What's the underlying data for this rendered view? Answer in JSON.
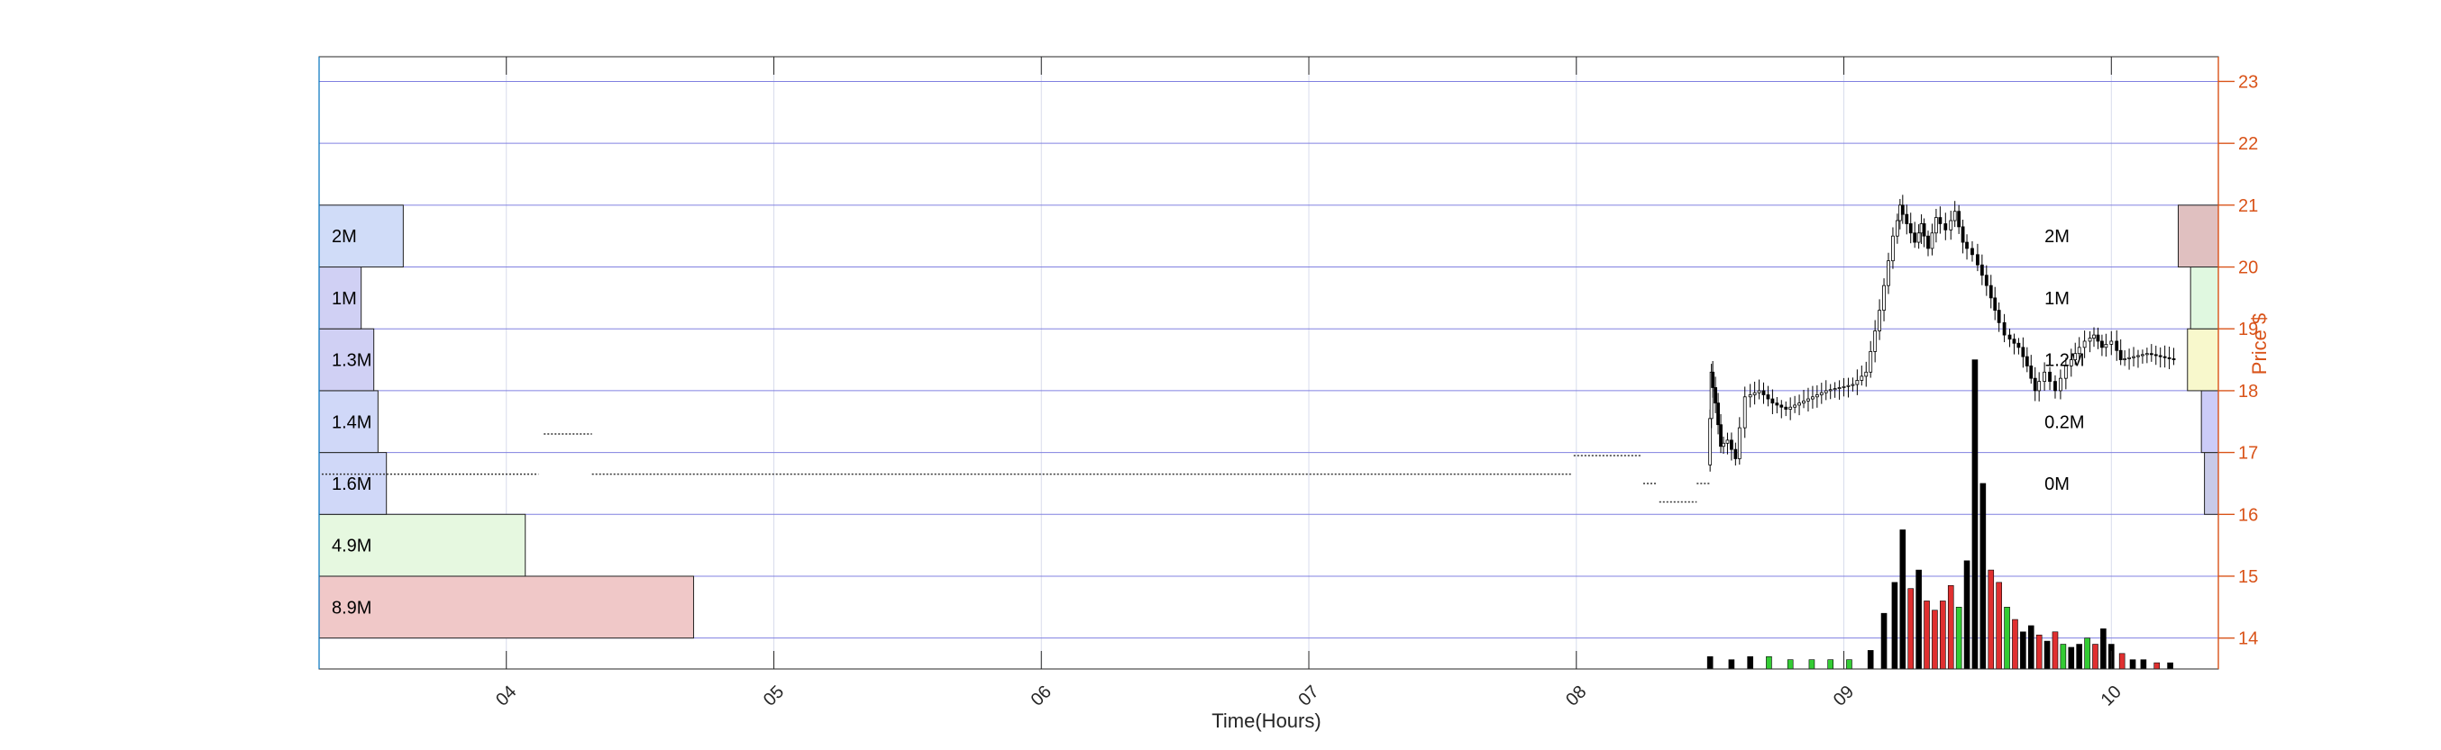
{
  "chart_data": {
    "type": "candlestick-volume-profile",
    "title": "",
    "xlabel": "Time(Hours)",
    "ylabel": "Price $",
    "xlim": [
      3.3,
      10.4
    ],
    "ylim": [
      13.5,
      23.4
    ],
    "x_ticks": [
      {
        "value": 4,
        "label": "04"
      },
      {
        "value": 5,
        "label": "05"
      },
      {
        "value": 6,
        "label": "06"
      },
      {
        "value": 7,
        "label": "07"
      },
      {
        "value": 8,
        "label": "08"
      },
      {
        "value": 9,
        "label": "09"
      },
      {
        "value": 10,
        "label": "10"
      }
    ],
    "y_ticks": [
      14,
      15,
      16,
      17,
      18,
      19,
      20,
      21,
      22,
      23
    ],
    "grid": true,
    "colors": {
      "axis_right": "#D95319",
      "grid_h": "#8080e0",
      "grid_v": "#d8dcec",
      "up": "#33cc33",
      "down": "#e03030",
      "neutral": "#000000"
    },
    "profile_left": [
      {
        "price_low": 13.5,
        "price_high": 14.0,
        "value": 0,
        "label": ""
      },
      {
        "price_low": 14.0,
        "price_high": 15.0,
        "value": 8.9,
        "label": "8.9M",
        "color": "#f0c8c8"
      },
      {
        "price_low": 15.0,
        "price_high": 16.0,
        "value": 4.9,
        "label": "4.9M",
        "color": "#e6f8e0"
      },
      {
        "price_low": 16.0,
        "price_high": 17.0,
        "value": 1.6,
        "label": "1.6M",
        "color": "#d0d8f8"
      },
      {
        "price_low": 17.0,
        "price_high": 18.0,
        "value": 1.4,
        "label": "1.4M",
        "color": "#d0d8f8"
      },
      {
        "price_low": 18.0,
        "price_high": 19.0,
        "value": 1.3,
        "label": "1.3M",
        "color": "#d0d0f4"
      },
      {
        "price_low": 19.0,
        "price_high": 20.0,
        "value": 1.0,
        "label": "1M",
        "color": "#d0d0f4"
      },
      {
        "price_low": 20.0,
        "price_high": 21.0,
        "value": 2.0,
        "label": "2M",
        "color": "#d0dcf8"
      }
    ],
    "profile_right": [
      {
        "price_low": 16.0,
        "price_high": 17.0,
        "value": 0.45,
        "label": "0M",
        "color": "#c8cae8"
      },
      {
        "price_low": 17.0,
        "price_high": 18.0,
        "value": 0.55,
        "label": "0.2M",
        "color": "#ccccf8"
      },
      {
        "price_low": 18.0,
        "price_high": 19.0,
        "value": 1.0,
        "label": "1.2M",
        "color": "#f8f8cc"
      },
      {
        "price_low": 19.0,
        "price_high": 20.0,
        "value": 0.9,
        "label": "1M",
        "color": "#e0f8e0"
      },
      {
        "price_low": 20.0,
        "price_high": 21.0,
        "value": 1.3,
        "label": "2M",
        "color": "#e0c0c0"
      }
    ],
    "premarket_levels": [
      {
        "x_start": 3.31,
        "x_end": 4.12,
        "price": 16.65
      },
      {
        "x_start": 4.32,
        "x_end": 7.98,
        "price": 16.65
      },
      {
        "x_start": 4.14,
        "x_end": 4.32,
        "price": 17.3
      },
      {
        "x_start": 7.99,
        "x_end": 8.24,
        "price": 16.95
      },
      {
        "x_start": 8.25,
        "x_end": 8.3,
        "price": 16.5
      },
      {
        "x_start": 8.31,
        "x_end": 8.45,
        "price": 16.2
      },
      {
        "x_start": 8.45,
        "x_end": 8.5,
        "price": 16.5
      }
    ],
    "price_path": [
      [
        8.5,
        16.8
      ],
      [
        8.51,
        18.3
      ],
      [
        8.53,
        17.8
      ],
      [
        8.55,
        17.1
      ],
      [
        8.58,
        17.2
      ],
      [
        8.61,
        16.9
      ],
      [
        8.65,
        17.9
      ],
      [
        8.7,
        18.0
      ],
      [
        8.75,
        17.8
      ],
      [
        8.8,
        17.7
      ],
      [
        8.85,
        17.8
      ],
      [
        8.9,
        17.9
      ],
      [
        8.95,
        18.0
      ],
      [
        9.0,
        18.05
      ],
      [
        9.05,
        18.1
      ],
      [
        9.1,
        18.3
      ],
      [
        9.15,
        19.3
      ],
      [
        9.2,
        20.5
      ],
      [
        9.22,
        21.0
      ],
      [
        9.25,
        20.7
      ],
      [
        9.28,
        20.4
      ],
      [
        9.3,
        20.7
      ],
      [
        9.33,
        20.3
      ],
      [
        9.36,
        20.8
      ],
      [
        9.4,
        20.6
      ],
      [
        9.43,
        20.9
      ],
      [
        9.46,
        20.4
      ],
      [
        9.5,
        20.2
      ],
      [
        9.55,
        19.7
      ],
      [
        9.58,
        19.3
      ],
      [
        9.62,
        18.9
      ],
      [
        9.67,
        18.7
      ],
      [
        9.7,
        18.4
      ],
      [
        9.73,
        18.0
      ],
      [
        9.77,
        18.3
      ],
      [
        9.81,
        18.0
      ],
      [
        9.85,
        18.4
      ],
      [
        9.88,
        18.6
      ],
      [
        9.92,
        18.8
      ],
      [
        9.95,
        18.9
      ],
      [
        9.98,
        18.7
      ],
      [
        10.02,
        18.8
      ],
      [
        10.05,
        18.5
      ],
      [
        10.1,
        18.55
      ],
      [
        10.15,
        18.6
      ],
      [
        10.2,
        18.55
      ],
      [
        10.25,
        18.5
      ]
    ],
    "volume": {
      "axis_min_price": 13.5,
      "max_value_price": 18.5,
      "bars": [
        {
          "x": 8.5,
          "v": 0.04,
          "c": "k"
        },
        {
          "x": 8.58,
          "v": 0.03,
          "c": "k"
        },
        {
          "x": 8.65,
          "v": 0.04,
          "c": "k"
        },
        {
          "x": 8.72,
          "v": 0.04,
          "c": "g"
        },
        {
          "x": 8.8,
          "v": 0.03,
          "c": "g"
        },
        {
          "x": 8.88,
          "v": 0.03,
          "c": "g"
        },
        {
          "x": 8.95,
          "v": 0.03,
          "c": "g"
        },
        {
          "x": 9.02,
          "v": 0.03,
          "c": "g"
        },
        {
          "x": 9.1,
          "v": 0.06,
          "c": "k"
        },
        {
          "x": 9.15,
          "v": 0.18,
          "c": "k"
        },
        {
          "x": 9.19,
          "v": 0.28,
          "c": "k"
        },
        {
          "x": 9.22,
          "v": 0.45,
          "c": "k"
        },
        {
          "x": 9.25,
          "v": 0.26,
          "c": "r"
        },
        {
          "x": 9.28,
          "v": 0.32,
          "c": "k"
        },
        {
          "x": 9.31,
          "v": 0.22,
          "c": "r"
        },
        {
          "x": 9.34,
          "v": 0.19,
          "c": "r"
        },
        {
          "x": 9.37,
          "v": 0.22,
          "c": "r"
        },
        {
          "x": 9.4,
          "v": 0.27,
          "c": "r"
        },
        {
          "x": 9.43,
          "v": 0.2,
          "c": "g"
        },
        {
          "x": 9.46,
          "v": 0.35,
          "c": "k"
        },
        {
          "x": 9.49,
          "v": 1.0,
          "c": "k"
        },
        {
          "x": 9.52,
          "v": 0.6,
          "c": "k"
        },
        {
          "x": 9.55,
          "v": 0.32,
          "c": "r"
        },
        {
          "x": 9.58,
          "v": 0.28,
          "c": "r"
        },
        {
          "x": 9.61,
          "v": 0.2,
          "c": "g"
        },
        {
          "x": 9.64,
          "v": 0.16,
          "c": "r"
        },
        {
          "x": 9.67,
          "v": 0.12,
          "c": "k"
        },
        {
          "x": 9.7,
          "v": 0.14,
          "c": "k"
        },
        {
          "x": 9.73,
          "v": 0.11,
          "c": "r"
        },
        {
          "x": 9.76,
          "v": 0.09,
          "c": "k"
        },
        {
          "x": 9.79,
          "v": 0.12,
          "c": "r"
        },
        {
          "x": 9.82,
          "v": 0.08,
          "c": "g"
        },
        {
          "x": 9.85,
          "v": 0.07,
          "c": "k"
        },
        {
          "x": 9.88,
          "v": 0.08,
          "c": "k"
        },
        {
          "x": 9.91,
          "v": 0.1,
          "c": "g"
        },
        {
          "x": 9.94,
          "v": 0.08,
          "c": "r"
        },
        {
          "x": 9.97,
          "v": 0.13,
          "c": "k"
        },
        {
          "x": 10.0,
          "v": 0.08,
          "c": "k"
        },
        {
          "x": 10.04,
          "v": 0.05,
          "c": "r"
        },
        {
          "x": 10.08,
          "v": 0.03,
          "c": "k"
        },
        {
          "x": 10.12,
          "v": 0.03,
          "c": "k"
        },
        {
          "x": 10.17,
          "v": 0.02,
          "c": "r"
        },
        {
          "x": 10.22,
          "v": 0.02,
          "c": "k"
        }
      ]
    }
  }
}
